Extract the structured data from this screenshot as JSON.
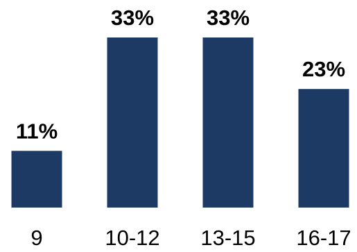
{
  "chart_data": {
    "type": "bar",
    "categories": [
      "9",
      "10-12",
      "13-15",
      "16-17"
    ],
    "values": [
      11,
      33,
      33,
      23
    ],
    "data_labels": [
      "11%",
      "33%",
      "33%",
      "23%"
    ],
    "value_unit": "%",
    "ylim": [
      0,
      33
    ],
    "grid": false,
    "legend": "none",
    "title": "",
    "xlabel": "",
    "ylabel": "",
    "colors": {
      "bar": "#1c3a63",
      "text": "#000000",
      "background": "#ffffff"
    }
  }
}
